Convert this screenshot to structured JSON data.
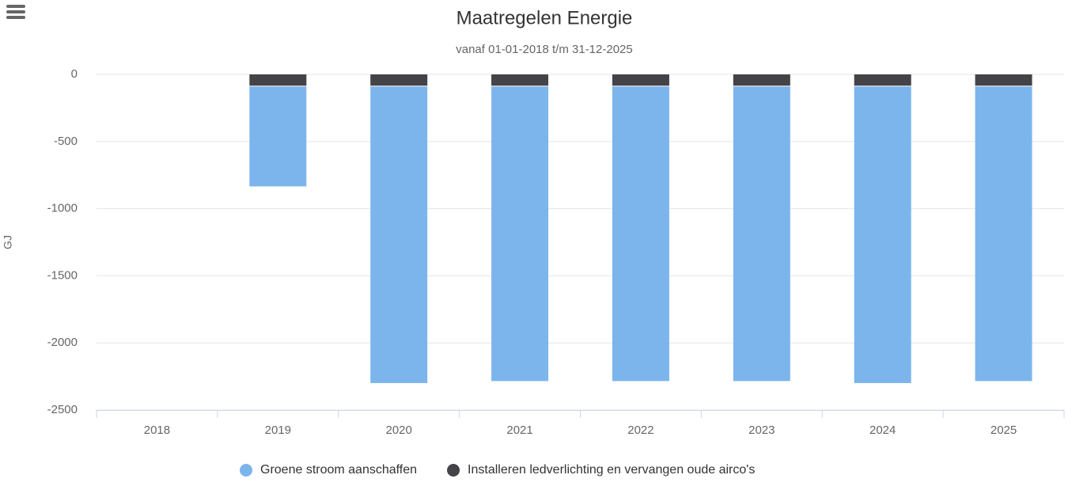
{
  "chart_data": {
    "type": "bar",
    "stacked": true,
    "title": "Maatregelen Energie",
    "subtitle": "vanaf 01-01-2018 t/m 31-12-2025",
    "y_label": "GJ",
    "categories": [
      "2018",
      "2019",
      "2020",
      "2021",
      "2022",
      "2023",
      "2024",
      "2025"
    ],
    "series": [
      {
        "name": "Groene stroom aanschaffen",
        "color": "#7cb5ec",
        "values": [
          null,
          -750,
          -2215,
          -2200,
          -2200,
          -2200,
          -2215,
          -2200
        ]
      },
      {
        "name": "Installeren ledverlichting en vervangen oude airco's",
        "color": "#434348",
        "values": [
          null,
          -90,
          -90,
          -90,
          -90,
          -90,
          -90,
          -90
        ]
      }
    ],
    "ylim": [
      -2500,
      0
    ],
    "yticks": [
      0,
      -500,
      -1000,
      -1500,
      -2000,
      -2500
    ],
    "grid": true
  }
}
